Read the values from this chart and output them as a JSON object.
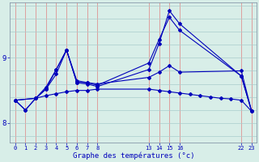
{
  "xlabel": "Graphe des températures (°c)",
  "background_color": "#d8eee8",
  "line_color": "#0000bb",
  "ylim": [
    7.7,
    9.85
  ],
  "xlim": [
    -0.5,
    23.5
  ],
  "yticks": [
    8,
    9
  ],
  "xticks": [
    0,
    1,
    2,
    3,
    4,
    5,
    6,
    7,
    8,
    13,
    14,
    15,
    16,
    22,
    23
  ],
  "series1_x": [
    0,
    1,
    2,
    3,
    4,
    5,
    6,
    7,
    8,
    13,
    14,
    15,
    16,
    17,
    18,
    19,
    20,
    21,
    22,
    23
  ],
  "series1_y": [
    8.35,
    8.2,
    8.38,
    8.42,
    8.45,
    8.48,
    8.5,
    8.5,
    8.52,
    8.52,
    8.5,
    8.48,
    8.46,
    8.44,
    8.42,
    8.4,
    8.38,
    8.37,
    8.35,
    8.18
  ],
  "series2_x": [
    0,
    2,
    3,
    4,
    5,
    6,
    7,
    8,
    13,
    14,
    15,
    16,
    22,
    23
  ],
  "series2_y": [
    8.35,
    8.38,
    8.55,
    8.82,
    9.12,
    8.65,
    8.62,
    8.58,
    8.92,
    9.28,
    9.62,
    9.42,
    8.72,
    8.18
  ],
  "series3_x": [
    0,
    2,
    3,
    4,
    5,
    6,
    7,
    8,
    13,
    14,
    15,
    16,
    22,
    23
  ],
  "series3_y": [
    8.35,
    8.38,
    8.52,
    8.82,
    9.12,
    8.62,
    8.6,
    8.56,
    8.82,
    9.22,
    9.72,
    9.52,
    8.72,
    8.18
  ],
  "series4_x": [
    0,
    1,
    2,
    3,
    4,
    5,
    6,
    7,
    8,
    13,
    14,
    15,
    16,
    22,
    23
  ],
  "series4_y": [
    8.35,
    8.2,
    8.38,
    8.52,
    8.75,
    9.12,
    8.62,
    8.62,
    8.6,
    8.7,
    8.78,
    8.88,
    8.78,
    8.8,
    8.18
  ]
}
